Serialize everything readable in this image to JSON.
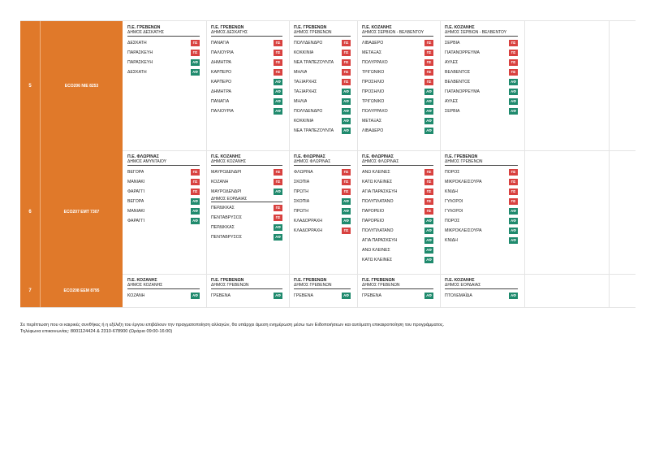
{
  "rows": [
    {
      "num": "5",
      "code": "ECO206  ΝΙΕ 8253",
      "groups": [
        {
          "pe": "Π.Ε. ΓΡΕΒΕΝΩΝ",
          "dimos": "ΔΗΜΟΣ ΔΕΣΚΑΤΗΣ",
          "items": [
            {
              "name": "ΔΕΣΚΑΤΗ",
              "tag": "ΠΣ"
            },
            {
              "name": "ΠΑΡΑΣΚΕΥΗ",
              "tag": "ΠΣ"
            },
            {
              "name": "ΠΑΡΑΣΚΕΥΗ",
              "tag": "ΑΦ"
            },
            {
              "name": "ΔΕΣΚΑΤΗ",
              "tag": "ΑΦ"
            }
          ]
        },
        {
          "pe": "Π.Ε. ΓΡΕΒΕΝΩΝ",
          "dimos": "ΔΗΜΟΣ ΔΕΣΚΑΤΗΣ",
          "items": [
            {
              "name": "ΠΑΝΑΓΙΑ",
              "tag": "ΠΣ"
            },
            {
              "name": "ΠΑΛΙΟΥΡΙΑ",
              "tag": "ΠΣ"
            },
            {
              "name": "ΔΗΜΗΤΡΑ",
              "tag": "ΠΣ"
            },
            {
              "name": "ΚΑΡΠΕΡΟ",
              "tag": "ΠΣ"
            },
            {
              "name": "ΚΑΡΠΕΡΟ",
              "tag": "ΑΦ"
            },
            {
              "name": "ΔΗΜΗΤΡΑ",
              "tag": "ΑΦ"
            },
            {
              "name": "ΠΑΝΑΓΙΑ",
              "tag": "ΑΦ"
            },
            {
              "name": "ΠΑΛΙΟΥΡΙΑ",
              "tag": "ΑΦ"
            }
          ]
        },
        {
          "pe": "Π.Ε. ΓΡΕΒΕΝΩΝ",
          "dimos": "ΔΗΜΟΣ ΓΡΕΒΕΝΩΝ",
          "items": [
            {
              "name": "ΠΟΛΥΔΕΝΔΡΟ",
              "tag": "ΠΣ"
            },
            {
              "name": "ΚΟΚΚΙΝΙΑ",
              "tag": "ΠΣ"
            },
            {
              "name": "ΝΕΑ ΤΡΑΠΕΖΟΥΝΤΑ",
              "tag": "ΠΣ"
            },
            {
              "name": "ΜΗΛΙΑ",
              "tag": "ΠΣ"
            },
            {
              "name": "ΤΑΞΙΑΡΧΗΣ",
              "tag": "ΠΣ"
            },
            {
              "name": "ΤΑΞΙΑΡΧΗΣ",
              "tag": "ΑΦ"
            },
            {
              "name": "ΜΗΛΙΑ",
              "tag": "ΑΦ"
            },
            {
              "name": "ΠΟΛΥΔΕΝΔΡΟ",
              "tag": "ΑΦ"
            },
            {
              "name": "ΚΟΚΚΙΝΙΑ",
              "tag": "ΑΦ"
            },
            {
              "name": "ΝΕΑ ΤΡΑΠΕΖΟΥΝΤΑ",
              "tag": "ΑΦ"
            }
          ]
        },
        {
          "pe": "Π.Ε. ΚΟΖΑΝΗΣ",
          "dimos": "ΔΗΜΟΣ ΣΕΡΒΙΩΝ - ΒΕΛΒΕΝΤΟΥ",
          "items": [
            {
              "name": "ΛΙΒΑΔΕΡΟ",
              "tag": "ΠΣ"
            },
            {
              "name": "ΜΕΤΑΞΑΣ",
              "tag": "ΠΣ"
            },
            {
              "name": "ΠΟΛΥΡΡΑΧΟ",
              "tag": "ΠΣ"
            },
            {
              "name": "ΤΡΙΓΩΝΙΚΟ",
              "tag": "ΠΣ"
            },
            {
              "name": "ΠΡΟΣΗΛΙΟ",
              "tag": "ΠΣ"
            },
            {
              "name": "ΠΡΟΣΗΛΙΟ",
              "tag": "ΑΦ"
            },
            {
              "name": "ΤΡΙΓΩΝΙΚΟ",
              "tag": "ΑΦ"
            },
            {
              "name": "ΠΟΛΥΡΡΑΧΟ",
              "tag": "ΑΦ"
            },
            {
              "name": "ΜΕΤΑΞΑΣ",
              "tag": "ΑΦ"
            },
            {
              "name": "ΛΙΒΑΔΕΡΟ",
              "tag": "ΑΦ"
            }
          ]
        },
        {
          "pe": "Π.Ε. ΚΟΖΑΝΗΣ",
          "dimos": "ΔΗΜΟΣ ΣΕΡΒΙΩΝ - ΒΕΛΒΕΝΤΟΥ",
          "items": [
            {
              "name": "ΣΕΡΒΙΑ",
              "tag": "ΠΣ"
            },
            {
              "name": "ΓΙΑΤΑΝΟΡΡΕΥΜΑ",
              "tag": "ΠΣ"
            },
            {
              "name": "ΑΥΛΕΣ",
              "tag": "ΠΣ"
            },
            {
              "name": "ΒΕΛΒΕΝΤΟΣ",
              "tag": "ΠΣ"
            },
            {
              "name": "ΒΕΛΒΕΝΤΟΣ",
              "tag": "ΑΦ"
            },
            {
              "name": "ΓΙΑΤΑΝΟΡΡΕΥΜΑ",
              "tag": "ΑΦ"
            },
            {
              "name": "ΑΥΛΕΣ",
              "tag": "ΑΦ"
            },
            {
              "name": "ΣΕΡΒΙΑ",
              "tag": "ΑΦ"
            }
          ]
        }
      ]
    },
    {
      "num": "6",
      "code": "ECO207  ΕΜΤ 7307",
      "groups": [
        {
          "pe": "Π.Ε. ΦΛΩΡΙΝΑΣ",
          "dimos": "ΔΗΜΟΣ ΑΜΥΝΤΑΙΟΥ",
          "items": [
            {
              "name": "ΒΕΓΟΡΑ",
              "tag": "ΠΣ"
            },
            {
              "name": "ΜΑΝΙΑΚΙ",
              "tag": "ΠΣ"
            },
            {
              "name": "ΦΑΡΑΓΓΙ",
              "tag": "ΠΣ"
            },
            {
              "name": "ΒΕΓΟΡΑ",
              "tag": "ΑΦ"
            },
            {
              "name": "ΜΑΝΙΑΚΙ",
              "tag": "ΑΦ"
            },
            {
              "name": "ΦΑΡΑΓΓΙ",
              "tag": "ΑΦ"
            }
          ]
        },
        {
          "pe": "Π.Ε. ΚΟΖΑΝΗΣ",
          "dimos": "ΔΗΜΟΣ ΚΟΖΑΝΗΣ",
          "items": [
            {
              "name": "ΜΑΥΡΟΔΕΝΔΡΙ",
              "tag": "ΠΣ"
            },
            {
              "name": "ΚΟΖΑΝΗ",
              "tag": "ΠΣ"
            },
            {
              "name": "ΜΑΥΡΟΔΕΝΔΡΙ",
              "tag": "ΑΦ"
            },
            {
              "name": "ΔΗΜΟΣ ΕΟΡΔΑΙΑΣ",
              "tag": "",
              "sub": true
            },
            {
              "name": "ΠΕΡΔΙΚΚΑΣ",
              "tag": "ΠΣ"
            },
            {
              "name": "ΠΕΝΤΑΒΡΥΣΟΣ",
              "tag": "ΠΣ"
            },
            {
              "name": "ΠΕΡΔΙΚΚΑΣ",
              "tag": "ΑΦ"
            },
            {
              "name": "ΠΕΝΤΑΒΡΥΣΟΣ",
              "tag": "ΑΦ"
            }
          ]
        },
        {
          "pe": "Π.Ε. ΦΛΩΡΙΝΑΣ",
          "dimos": "ΔΗΜΟΣ ΦΛΩΡΙΝΑΣ",
          "items": [
            {
              "name": "ΦΛΩΡΙΝΑ",
              "tag": "ΠΣ"
            },
            {
              "name": "ΣΚΟΠΙΑ",
              "tag": "ΠΣ"
            },
            {
              "name": "ΠΡΩΤΗ",
              "tag": "ΠΣ"
            },
            {
              "name": "ΣΚΟΠΙΑ",
              "tag": "ΑΦ"
            },
            {
              "name": "ΠΡΩΤΗ",
              "tag": "ΑΦ"
            },
            {
              "name": "ΚΛΑΔΟΡΡΑΧΗ",
              "tag": "ΑΦ"
            },
            {
              "name": "ΚΛΑΔΟΡΡΑΧΗ",
              "tag": "ΠΣ"
            }
          ]
        },
        {
          "pe": "Π.Ε. ΦΛΩΡΙΝΑΣ",
          "dimos": "ΔΗΜΟΣ ΦΛΩΡΙΝΑΣ",
          "items": [
            {
              "name": "ΑΝΩ ΚΛΕΙΝΕΣ",
              "tag": "ΠΣ"
            },
            {
              "name": "ΚΑΤΩ ΚΛΕΙΝΕΣ",
              "tag": "ΠΣ"
            },
            {
              "name": "ΑΓΙΑ ΠΑΡΑΣΚΕΥΗ",
              "tag": "ΠΣ"
            },
            {
              "name": "ΠΟΛΥΠΛΑΤΑΝΟ",
              "tag": "ΠΣ"
            },
            {
              "name": "ΠΑΡΟΡΕΙΟ",
              "tag": "ΠΣ"
            },
            {
              "name": "ΠΑΡΟΡΕΙΟ",
              "tag": "ΑΦ"
            },
            {
              "name": "ΠΟΛΥΠΛΑΤΑΝΟ",
              "tag": "ΑΦ"
            },
            {
              "name": "ΑΓΙΑ ΠΑΡΑΣΚΕΥΗ",
              "tag": "ΑΦ"
            },
            {
              "name": "ΑΝΩ ΚΛΕΙΝΕΣ",
              "tag": "ΑΦ"
            },
            {
              "name": "ΚΑΤΩ ΚΛΕΙΝΕΣ",
              "tag": "ΑΦ"
            }
          ]
        },
        {
          "pe": "Π.Ε. ΓΡΕΒΕΝΩΝ",
          "dimos": "ΔΗΜΟΣ ΓΡΕΒΕΝΩΝ",
          "items": [
            {
              "name": "ΠΟΡΟΣ",
              "tag": "ΠΣ"
            },
            {
              "name": "ΜΙΚΡΟΚΛΕΙΣΟΥΡΑ",
              "tag": "ΠΣ"
            },
            {
              "name": "ΚΝΙΔΗ",
              "tag": "ΠΣ"
            },
            {
              "name": "ΓΥΛΟΡΟΙ",
              "tag": "ΠΣ"
            },
            {
              "name": "ΓΥΛΟΡΟΙ",
              "tag": "ΑΦ"
            },
            {
              "name": "ΠΟΡΟΣ",
              "tag": "ΑΦ"
            },
            {
              "name": "ΜΙΚΡΟΚΛΕΙΣΟΥΡΑ",
              "tag": "ΑΦ"
            },
            {
              "name": "ΚΝΙΔΗ",
              "tag": "ΑΦ"
            }
          ]
        }
      ]
    },
    {
      "num": "7",
      "code": "ECO208  ΕΕΜ 8795",
      "groups": [
        {
          "pe": "Π.Ε. ΚΟΖΑΝΗΣ",
          "dimos": "ΔΗΜΟΣ ΚΟΖΑΝΗΣ",
          "items": [
            {
              "name": "ΚΟΖΑΝΗ",
              "tag": "ΑΦ"
            }
          ]
        },
        {
          "pe": "Π.Ε. ΓΡΕΒΕΝΩΝ",
          "dimos": "ΔΗΜΟΣ ΓΡΕΒΕΝΩΝ",
          "items": [
            {
              "name": "ΓΡΕΒΕΝΑ",
              "tag": "ΑΦ"
            }
          ]
        },
        {
          "pe": "Π.Ε. ΓΡΕΒΕΝΩΝ",
          "dimos": "ΔΗΜΟΣ ΓΡΕΒΕΝΩΝ",
          "items": [
            {
              "name": "ΓΡΕΒΕΝΑ",
              "tag": "ΑΦ"
            }
          ]
        },
        {
          "pe": "Π.Ε. ΓΡΕΒΕΝΩΝ",
          "dimos": "ΔΗΜΟΣ ΓΡΕΒΕΝΩΝ",
          "items": [
            {
              "name": "ΓΡΕΒΕΝΑ",
              "tag": "ΑΦ"
            }
          ]
        },
        {
          "pe": "Π.Ε. ΚΟΖΑΝΗΣ",
          "dimos": "ΔΗΜΟΣ ΕΟΡΔΑΙΑΣ",
          "items": [
            {
              "name": "ΠΤΟΛΕΜΑΪΔΑ",
              "tag": "ΑΦ"
            }
          ]
        }
      ]
    }
  ],
  "note": {
    "line1": "Σε περίπτωση που οι καιρικές συνθήκες ή η εξέλιξη του έργου επιβάλουν την πραγματοποίηση αλλαγών, θα υπάρχει άμεση ενημέρωση μέσω των Ειδοποιήσεων και αυτόματη επικαιροποίηση του προγράμματος.",
    "line2": "Τηλέφωνα επικοινωνίας: 8001124424 & 2310-678900 (Ωράριο 09:00-16:00)"
  },
  "colors": {
    "accent": "#e0792a",
    "pe_tag": "#d8413f",
    "af_tag": "#1f8a6d"
  }
}
